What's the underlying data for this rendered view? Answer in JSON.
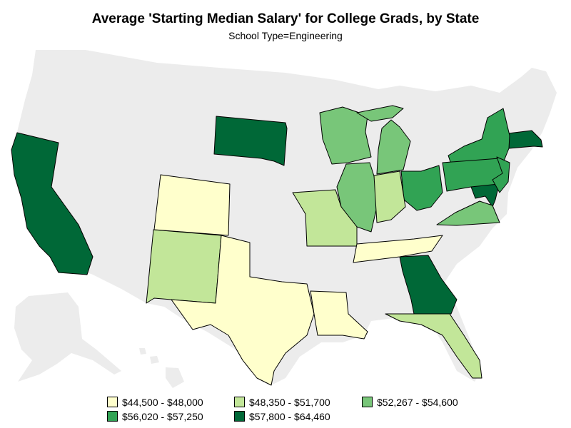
{
  "title": "Average 'Starting Median Salary' for College Grads, by State",
  "subtitle": "School Type=Engineering",
  "colors": {
    "background_states": "#ececec",
    "stroke": "#000000",
    "bin1": "#ffffcc",
    "bin2": "#c2e699",
    "bin3": "#78c679",
    "bin4": "#31a354",
    "bin5": "#006837"
  },
  "legend": [
    {
      "label": "$44,500 - $48,000",
      "color": "#ffffcc"
    },
    {
      "label": "$48,350 - $51,700",
      "color": "#c2e699"
    },
    {
      "label": "$52,267 - $54,600",
      "color": "#78c679"
    },
    {
      "label": "$56,020 - $57,250",
      "color": "#31a354"
    },
    {
      "label": "$57,800 - $64,460",
      "color": "#006837"
    }
  ],
  "states": [
    {
      "name": "California",
      "bin": 5
    },
    {
      "name": "South Dakota",
      "bin": 5
    },
    {
      "name": "Georgia",
      "bin": 5
    },
    {
      "name": "Maryland",
      "bin": 5
    },
    {
      "name": "Massachusetts",
      "bin": 5
    },
    {
      "name": "New York",
      "bin": 4
    },
    {
      "name": "Pennsylvania",
      "bin": 4
    },
    {
      "name": "Ohio",
      "bin": 4
    },
    {
      "name": "New Jersey",
      "bin": 4
    },
    {
      "name": "Wisconsin",
      "bin": 3
    },
    {
      "name": "Michigan",
      "bin": 3
    },
    {
      "name": "Illinois",
      "bin": 3
    },
    {
      "name": "Virginia",
      "bin": 3
    },
    {
      "name": "Missouri",
      "bin": 2
    },
    {
      "name": "Indiana",
      "bin": 2
    },
    {
      "name": "New Mexico",
      "bin": 2
    },
    {
      "name": "Florida",
      "bin": 2
    },
    {
      "name": "Wyoming",
      "bin": 1
    },
    {
      "name": "Texas",
      "bin": 1
    },
    {
      "name": "Louisiana",
      "bin": 1
    },
    {
      "name": "Tennessee",
      "bin": 1
    }
  ]
}
